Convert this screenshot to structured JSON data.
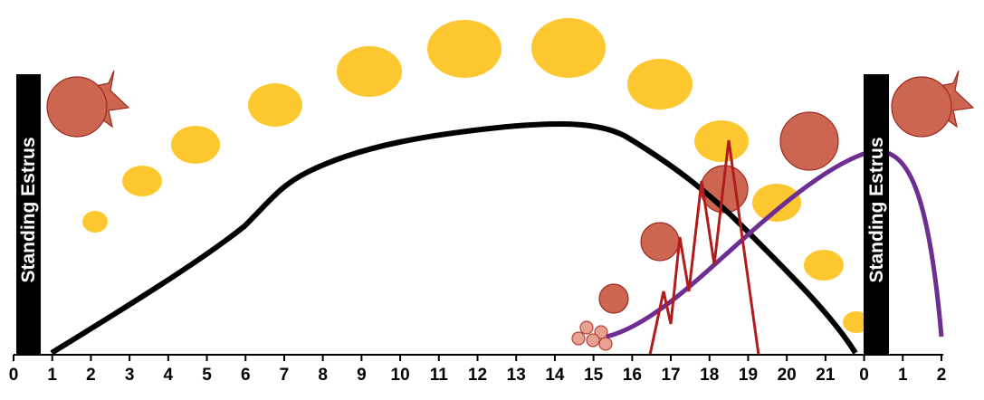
{
  "bars": {
    "left_label": "Standing Estrus",
    "right_label": "Standing Estrus"
  },
  "axis": {
    "ticks": [
      "0",
      "1",
      "2",
      "3",
      "4",
      "5",
      "6",
      "7",
      "8",
      "9",
      "10",
      "11",
      "12",
      "13",
      "14",
      "15",
      "16",
      "17",
      "18",
      "19",
      "20",
      "21",
      "0",
      "1",
      "2"
    ]
  }
}
